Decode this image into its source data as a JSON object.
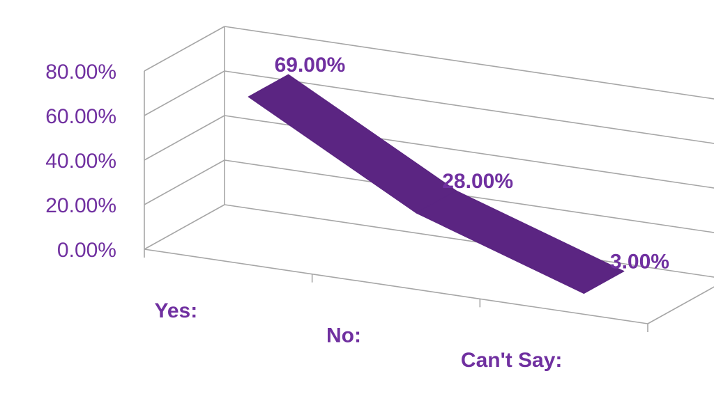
{
  "chart_data": {
    "type": "line",
    "categories": [
      "Yes:",
      "No:",
      "Can't Say:"
    ],
    "values": [
      69,
      28,
      3
    ],
    "data_labels": [
      "69.00%",
      "28.00%",
      "3.00%"
    ],
    "yticks": [
      "0.00%",
      "20.00%",
      "40.00%",
      "60.00%",
      "80.00%"
    ],
    "ylim": [
      0,
      80
    ],
    "grid": true,
    "style": "3d-ribbon",
    "colors": {
      "series": "#5b2582",
      "text": "#7030a0",
      "grid": "#a6a6a6"
    }
  }
}
